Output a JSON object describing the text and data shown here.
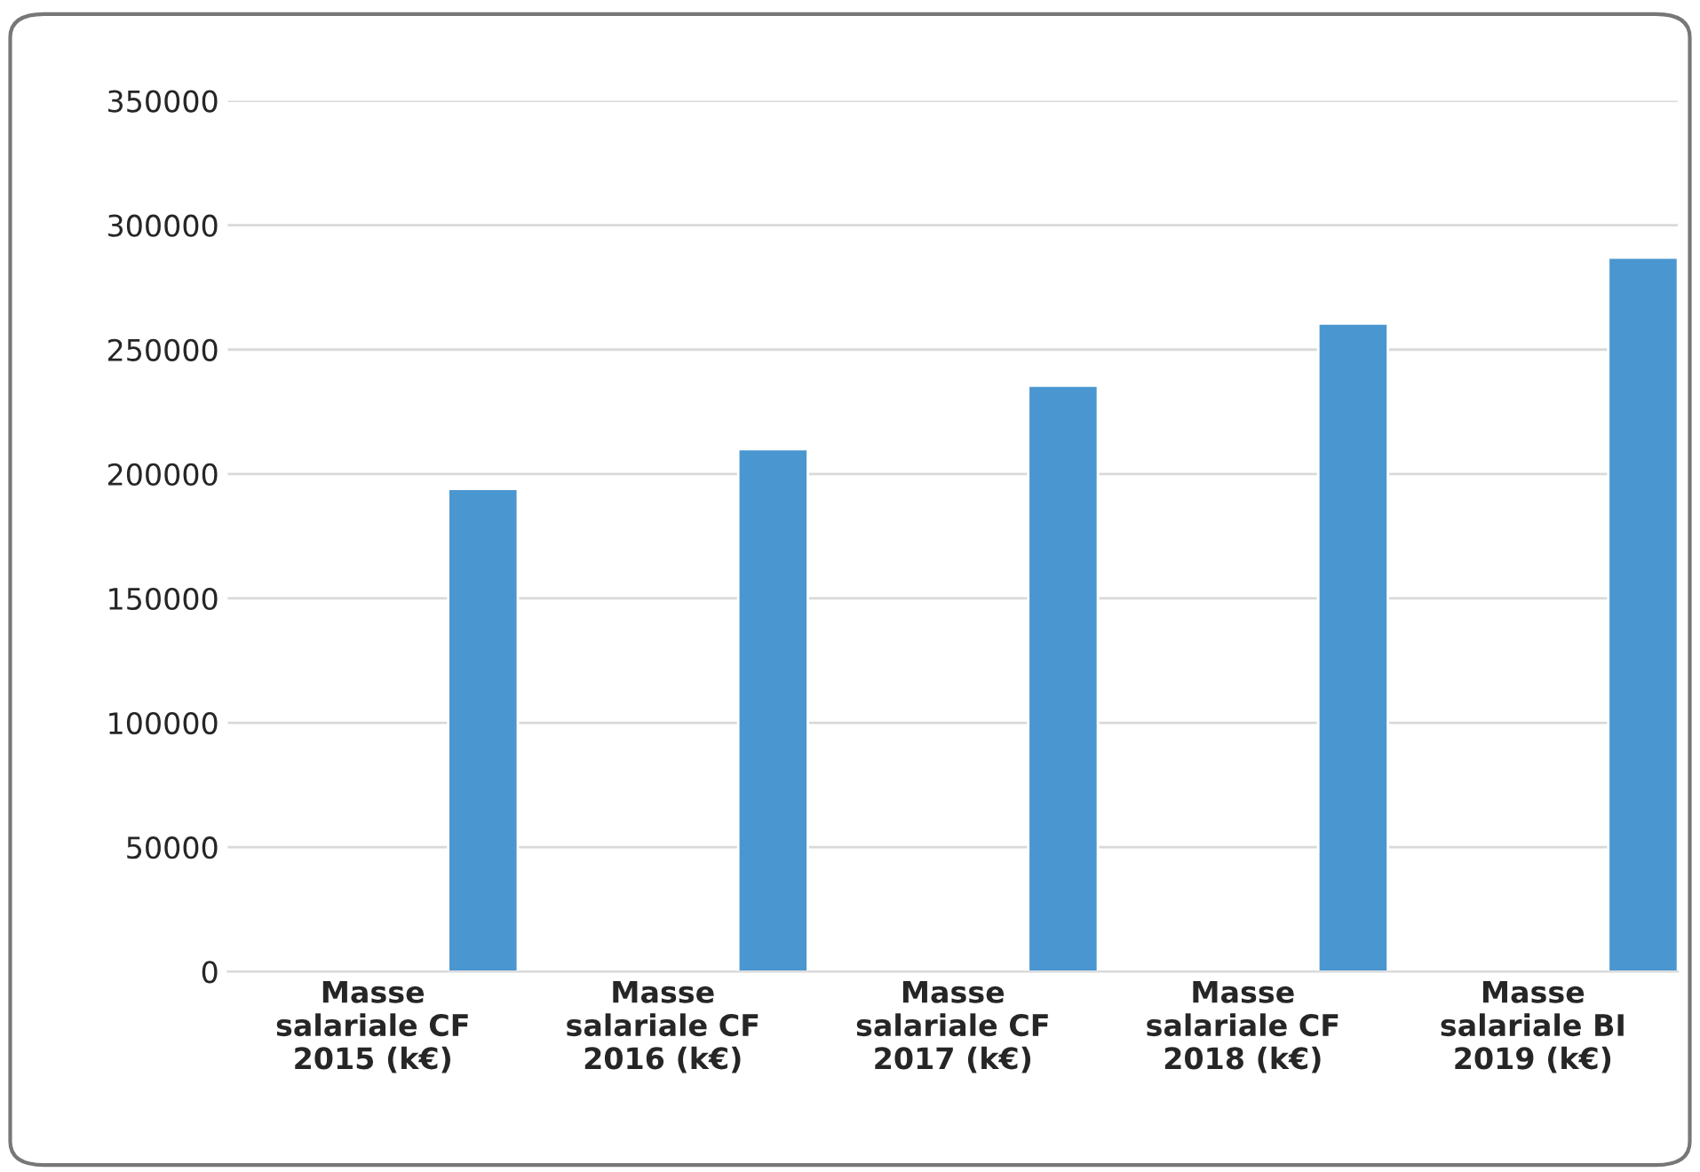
{
  "chart_data": {
    "type": "bar",
    "categories": [
      "Masse\nsalariale CF\n2015 (k€)",
      "Masse\nsalariale CF\n2016 (k€)",
      "Masse\nsalariale CF\n2017 (k€)",
      "Masse\nsalariale CF\n2018 (k€)",
      "Masse\nsalariale BI\n2019 (k€)"
    ],
    "series": [
      {
        "values": [
          null,
          null,
          null,
          null,
          null
        ]
      },
      {
        "color": "#4a96d0",
        "values": [
          194000,
          210000,
          235500,
          260500,
          287000
        ]
      }
    ],
    "ylim": [
      0,
      350000
    ],
    "yticks": [
      0,
      50000,
      100000,
      150000,
      200000,
      250000,
      300000,
      350000
    ],
    "grid": "y",
    "legend": false
  }
}
